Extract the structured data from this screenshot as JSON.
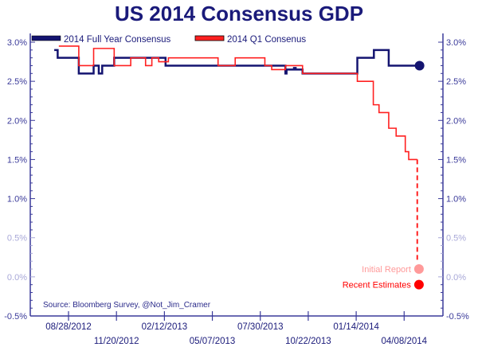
{
  "chart_data": {
    "type": "line",
    "title": "US 2014 Consensus GDP",
    "source": "Source: Bloomberg Survey, @Not_Jim_Cramer",
    "ylim": [
      -0.5,
      3.0
    ],
    "yticks": [
      -0.5,
      0.0,
      0.5,
      1.0,
      1.5,
      2.0,
      2.5,
      3.0
    ],
    "ytick_labels": [
      "-0.5%",
      "0.0%",
      "0.5%",
      "1.0%",
      "1.5%",
      "2.0%",
      "2.5%",
      "3.0%"
    ],
    "xlim": [
      "2012-06-22",
      "2014-06-15"
    ],
    "xticks": [
      "2012-08-28",
      "2012-11-20",
      "2013-02-12",
      "2013-05-07",
      "2013-07-30",
      "2013-10-22",
      "2014-01-14",
      "2014-04-08"
    ],
    "xtick_labels": [
      "08/28/2012",
      "11/20/2012",
      "02/12/2013",
      "05/07/2013",
      "07/30/2013",
      "10/22/2013",
      "01/14/2014",
      "04/08/2014"
    ],
    "grid": false,
    "legend": "top-left",
    "colors": {
      "full_year": "#141470",
      "q1": "#ff2020",
      "axis": "#3a3a9a",
      "faded_axis": "#a8a8d8",
      "initial": "#ff9a9a",
      "recent": "#ff0000"
    },
    "series": [
      {
        "name": "2014 Full Year Consensus",
        "step": true,
        "points": [
          [
            "2012-08-03",
            2.9
          ],
          [
            "2012-08-09",
            2.8
          ],
          [
            "2012-09-15",
            2.6
          ],
          [
            "2012-10-11",
            2.7
          ],
          [
            "2012-10-20",
            2.6
          ],
          [
            "2012-10-26",
            2.7
          ],
          [
            "2012-11-16",
            2.8
          ],
          [
            "2013-02-14",
            2.7
          ],
          [
            "2013-09-12",
            2.6
          ],
          [
            "2013-09-14",
            2.65
          ],
          [
            "2013-09-27",
            2.67
          ],
          [
            "2013-09-30",
            2.65
          ],
          [
            "2013-10-12",
            2.6
          ],
          [
            "2014-01-16",
            2.8
          ],
          [
            "2014-02-14",
            2.9
          ],
          [
            "2014-03-12",
            2.7
          ],
          [
            "2014-05-05",
            2.7
          ]
        ]
      },
      {
        "name": "2014 Q1 Consenus",
        "step": true,
        "points": [
          [
            "2012-08-11",
            2.95
          ],
          [
            "2012-09-15",
            2.7
          ],
          [
            "2012-10-11",
            2.92
          ],
          [
            "2012-11-16",
            2.7
          ],
          [
            "2012-12-15",
            2.8
          ],
          [
            "2013-01-10",
            2.7
          ],
          [
            "2013-01-21",
            2.8
          ],
          [
            "2013-02-02",
            2.75
          ],
          [
            "2013-02-19",
            2.8
          ],
          [
            "2013-05-17",
            2.7
          ],
          [
            "2013-06-16",
            2.8
          ],
          [
            "2013-08-07",
            2.7
          ],
          [
            "2013-08-19",
            2.65
          ],
          [
            "2013-09-12",
            2.7
          ],
          [
            "2013-10-12",
            2.6
          ],
          [
            "2014-01-16",
            2.5
          ],
          [
            "2014-02-13",
            2.2
          ],
          [
            "2014-02-23",
            2.1
          ],
          [
            "2014-03-12",
            1.9
          ],
          [
            "2014-03-25",
            1.8
          ],
          [
            "2014-04-10",
            1.6
          ],
          [
            "2014-04-16",
            1.5
          ],
          [
            "2014-05-01",
            1.5
          ]
        ]
      }
    ],
    "dashed_drop": {
      "date": "2014-05-01",
      "from": 1.5,
      "to": 0.2
    },
    "end_marker": {
      "date": "2014-05-05",
      "value": 2.7
    },
    "annotations": [
      {
        "label": "Initial Report",
        "date": "2014-05-04",
        "value": 0.1
      },
      {
        "label": "Recent Estimates",
        "date": "2014-05-04",
        "value": -0.1
      }
    ]
  }
}
